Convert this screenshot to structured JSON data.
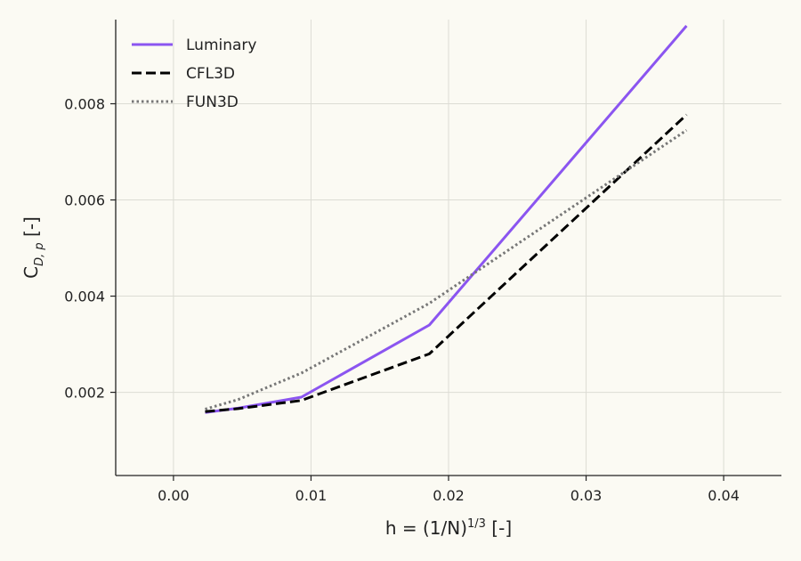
{
  "chart_data": {
    "type": "line",
    "xlabel": {
      "base": "h = (1/N)",
      "sup": "1/3",
      "suffix": " [-]"
    },
    "ylabel": {
      "base": "C",
      "sub": "D, p",
      "suffix": " [-]"
    },
    "xlim": [
      -0.0042,
      0.0442
    ],
    "ylim": [
      0.00027,
      0.00975
    ],
    "xticks": [
      0.0,
      0.01,
      0.02,
      0.03,
      0.04
    ],
    "xtick_labels": [
      "0.00",
      "0.01",
      "0.02",
      "0.03",
      "0.04"
    ],
    "yticks": [
      0.002,
      0.004,
      0.006,
      0.008
    ],
    "ytick_labels": [
      "0.002",
      "0.004",
      "0.006",
      "0.008"
    ],
    "grid": true,
    "legend_position": "top-left",
    "series": [
      {
        "name": "Luminary",
        "style": "solid",
        "color": "#8b55f0",
        "x": [
          0.0023,
          0.0047,
          0.0093,
          0.0186,
          0.0373
        ],
        "y": [
          0.00158,
          0.00167,
          0.0019,
          0.0034,
          0.00962
        ]
      },
      {
        "name": "CFL3D",
        "style": "dashed",
        "color": "#000000",
        "x": [
          0.0023,
          0.0047,
          0.0093,
          0.0186,
          0.0373
        ],
        "y": [
          0.0016,
          0.00166,
          0.00183,
          0.0028,
          0.00777
        ]
      },
      {
        "name": "FUN3D",
        "style": "dotted",
        "color": "#777777",
        "x": [
          0.0023,
          0.0047,
          0.0093,
          0.0186,
          0.0373
        ],
        "y": [
          0.00165,
          0.00185,
          0.0024,
          0.00385,
          0.00745
        ]
      }
    ]
  }
}
